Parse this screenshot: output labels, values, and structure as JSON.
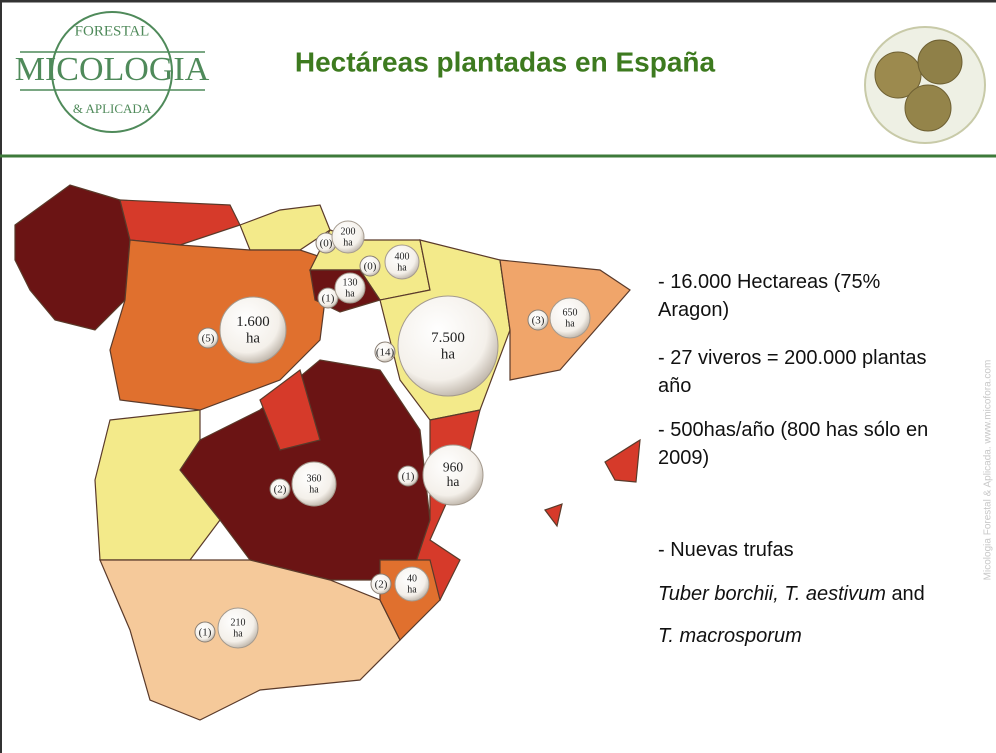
{
  "header": {
    "title": "Hectáreas plantadas en España",
    "logo": {
      "top": "FORESTAL",
      "main": "MICOLOGIA",
      "bottom": "& APLICADA"
    }
  },
  "map": {
    "bubbles": [
      {
        "count": "(0)",
        "area": "200",
        "unit": "ha"
      },
      {
        "count": "(0)",
        "area": "400",
        "unit": "ha"
      },
      {
        "count": "(1)",
        "area": "130",
        "unit": "ha"
      },
      {
        "count": "(5)",
        "area": "1.600",
        "unit": "ha"
      },
      {
        "count": "(14)",
        "area": "7.500",
        "unit": "ha"
      },
      {
        "count": "(3)",
        "area": "650",
        "unit": "ha"
      },
      {
        "count": "(2)",
        "area": "360",
        "unit": "ha"
      },
      {
        "count": "(1)",
        "area": "960",
        "unit": "ha"
      },
      {
        "count": "(2)",
        "area": "40",
        "unit": "ha"
      },
      {
        "count": "(1)",
        "area": "210",
        "unit": "ha"
      }
    ]
  },
  "bullets": [
    {
      "lines": [
        "- 16.000 Hectareas (75%",
        "Aragon)"
      ]
    },
    {
      "lines": [
        "- 27 viveros = 200.000 plantas",
        "año"
      ]
    },
    {
      "lines": [
        "- 500has/año (800 has sólo en",
        "2009)"
      ]
    },
    {
      "lines": [
        "-     Nuevas trufas"
      ]
    }
  ],
  "species": {
    "italic1": "Tuber borchii, T. aestivum",
    "plain": "and",
    "italic2": "T. macrosporum"
  },
  "watermark": "Micologia Forestal & Aplicada. www.micofora.com"
}
